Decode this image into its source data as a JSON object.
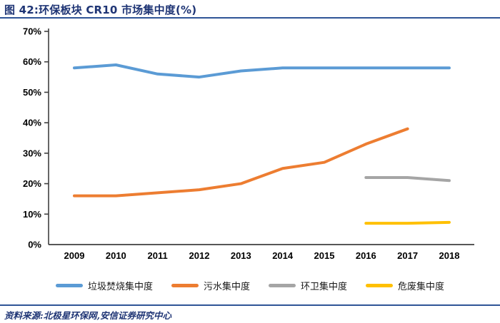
{
  "header": {
    "title": "图 42:环保板块 CR10 市场集中度(%)"
  },
  "footer": {
    "source": "资料来源:北极星环保网,安信证券研究中心"
  },
  "colors": {
    "title_navy": "#1F3575",
    "rule_blue": "#2F5597",
    "axis": "#3F3F3F",
    "series_blue": "#5B9BD5",
    "series_orange": "#ED7D31",
    "series_gray": "#A5A5A5",
    "series_yellow": "#FFC000"
  },
  "chart_data": {
    "type": "line",
    "title": "环保板块 CR10 市场集中度(%)",
    "xlabel": "",
    "ylabel": "",
    "x_years": [
      2009,
      2010,
      2011,
      2012,
      2013,
      2014,
      2015,
      2016,
      2017,
      2018
    ],
    "ylim": [
      0,
      70
    ],
    "y_tick_step": 10,
    "y_tick_labels": [
      "0%",
      "10%",
      "20%",
      "30%",
      "40%",
      "50%",
      "60%",
      "70%"
    ],
    "grid": false,
    "legend_position": "bottom",
    "series": [
      {
        "name": "垃圾焚烧集中度",
        "color": "#5B9BD5",
        "x": [
          2009,
          2010,
          2011,
          2012,
          2013,
          2014,
          2015,
          2016,
          2017,
          2018
        ],
        "values": [
          58,
          59,
          56,
          55,
          57,
          58,
          58,
          58,
          58,
          58
        ]
      },
      {
        "name": "污水集中度",
        "color": "#ED7D31",
        "x": [
          2009,
          2010,
          2011,
          2012,
          2013,
          2014,
          2015,
          2016,
          2017
        ],
        "values": [
          16,
          16,
          17,
          18,
          20,
          25,
          27,
          33,
          38
        ]
      },
      {
        "name": "环卫集中度",
        "color": "#A5A5A5",
        "x": [
          2016,
          2017,
          2018
        ],
        "values": [
          22,
          22,
          21
        ]
      },
      {
        "name": "危废集中度",
        "color": "#FFC000",
        "x": [
          2016,
          2017,
          2018
        ],
        "values": [
          7,
          7,
          7.3
        ]
      }
    ]
  }
}
